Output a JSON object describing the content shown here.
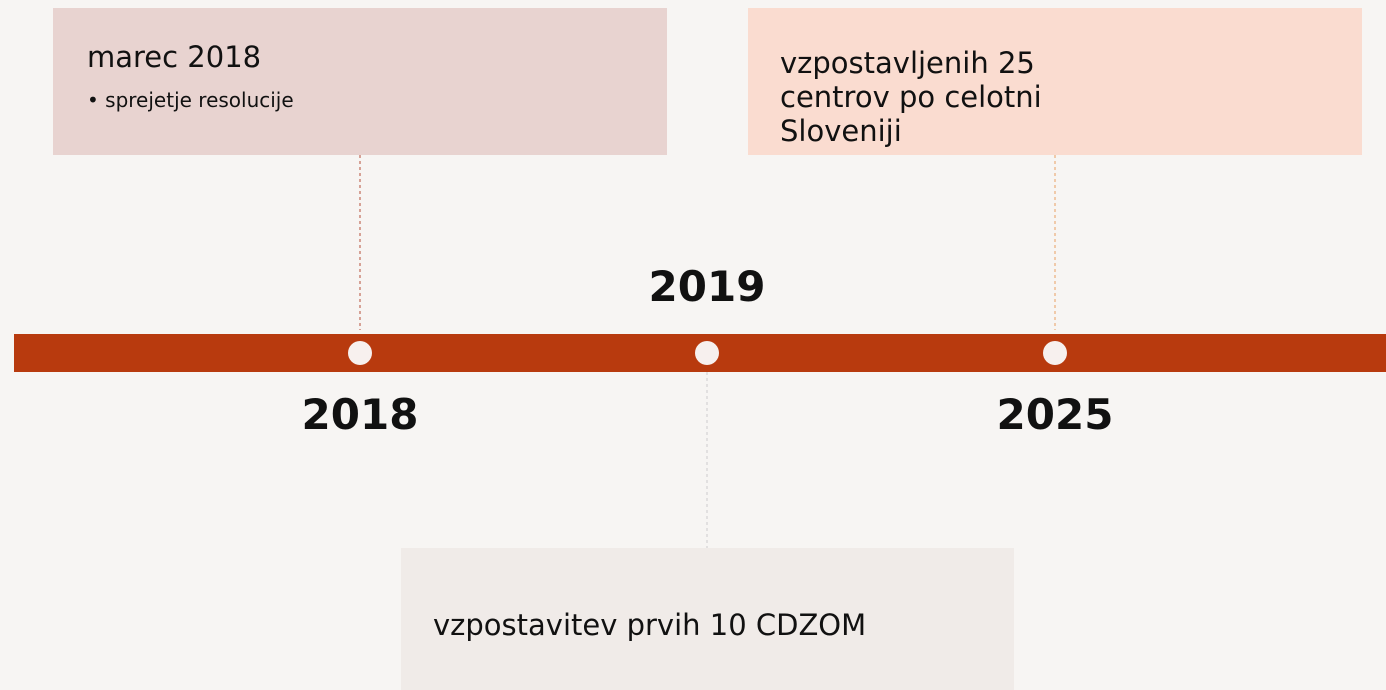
{
  "events": [
    {
      "year": "2018",
      "title": "marec 2018",
      "bullets": [
        "sprejetje resolucije"
      ]
    },
    {
      "year": "2019",
      "title": "vzpostavitev prvih 10 CDZOM"
    },
    {
      "year": "2025",
      "title": "vzpostavljenih 25 centrov po celotni Sloveniji"
    }
  ]
}
